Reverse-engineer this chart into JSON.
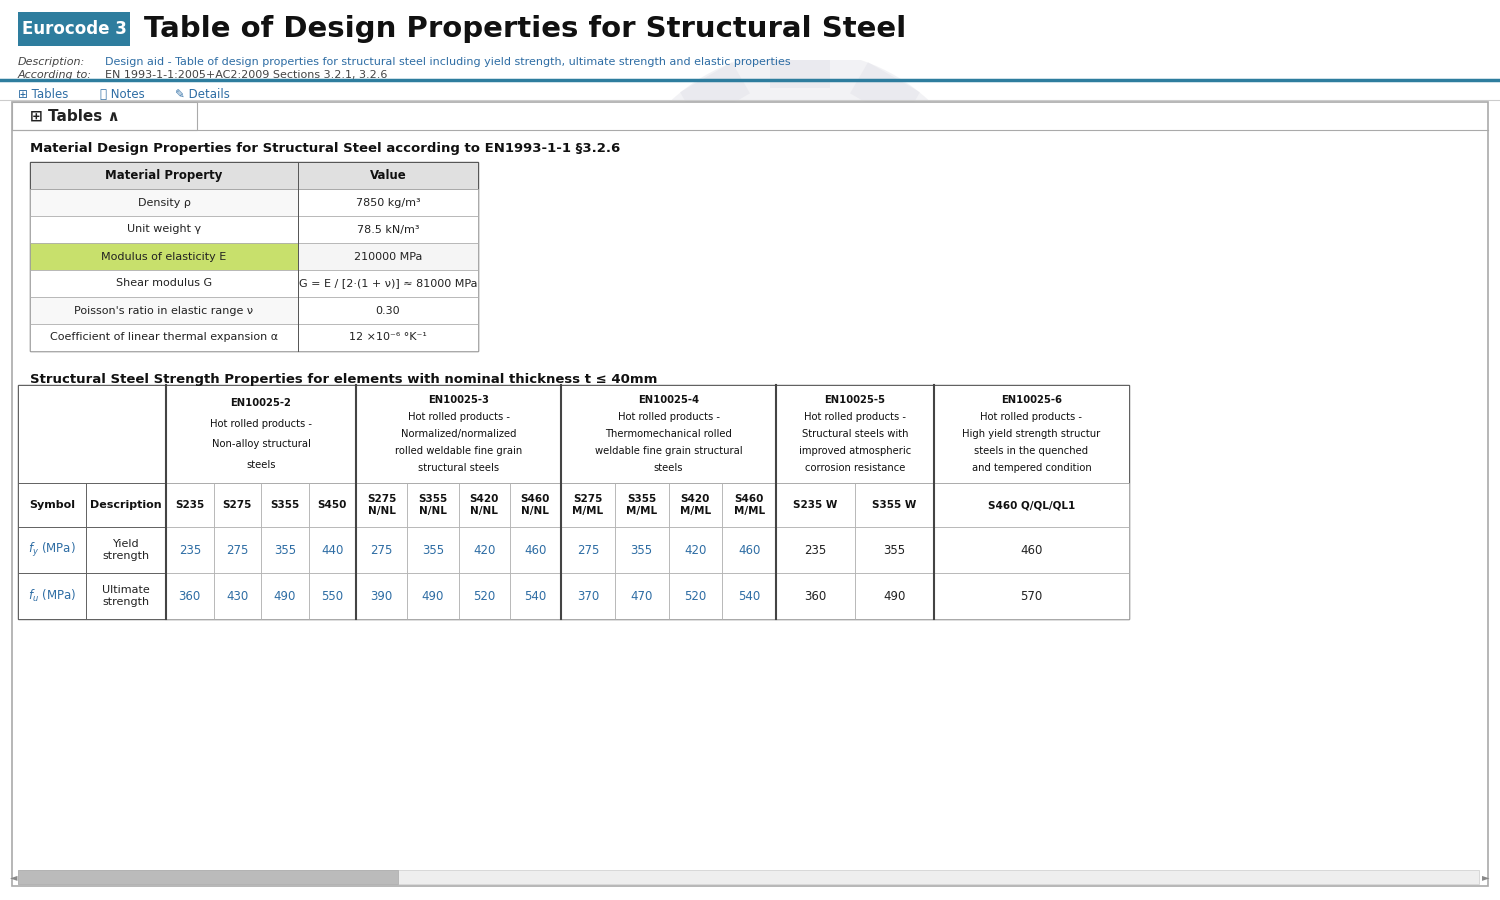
{
  "title_badge": "Eurocode 3",
  "title_badge_bg": "#2e7d9e",
  "title_text": "Table of Design Properties for Structural Steel",
  "description_label": "Description:",
  "description_text": "Design aid - Table of design properties for structural steel including yield strength, ultimate strength and elastic properties",
  "according_label": "According to:",
  "according_text": "EN 1993-1-1:2005+AC2:2009 Sections 3.2.1, 3.2.6",
  "mat_table_title": "Material Design Properties for Structural Steel according to EN1993-1-1 §3.2.6",
  "mat_header": [
    "Material Property",
    "Value"
  ],
  "mat_rows": [
    [
      "Density ρ",
      "7850 kg/m³"
    ],
    [
      "Unit weight γ",
      "78.5 kN/m³"
    ],
    [
      "Modulus of elasticity E",
      "210000 MPa"
    ],
    [
      "Shear modulus G",
      "G = E / [2·(1 + ν)] ≈ 81000 MPa"
    ],
    [
      "Poisson's ratio in elastic range ν",
      "0.30"
    ],
    [
      "Coefficient of linear thermal expansion α",
      "12 ×10⁻⁶ °K⁻¹"
    ]
  ],
  "mat_highlight_row": 2,
  "mat_highlight_color": "#c8e06c",
  "str_table_title": "Structural Steel Strength Properties for elements with nominal thickness t ≤ 40mm",
  "str_col_groups": [
    {
      "label": "EN10025-2\nHot rolled products -\nNon-alloy structural\nsteels",
      "cols": [
        "S235",
        "S275",
        "S355",
        "S450"
      ]
    },
    {
      "label": "EN10025-3\nHot rolled products -\nNormalized/normalized\nrolled weldable fine grain\nstructural steels",
      "cols": [
        "S275\nN/NL",
        "S355\nN/NL",
        "S420\nN/NL",
        "S460\nN/NL"
      ]
    },
    {
      "label": "EN10025-4\nHot rolled products -\nThermomechanical rolled\nweldable fine grain structural\nsteels",
      "cols": [
        "S275\nM/ML",
        "S355\nM/ML",
        "S420\nM/ML",
        "S460\nM/ML"
      ]
    },
    {
      "label": "EN10025-5\nHot rolled products -\nStructural steels with\nimproved atmospheric\ncorrosion resistance",
      "cols": [
        "S235 W",
        "S355 W"
      ]
    },
    {
      "label": "EN10025-6\nHot rolled products -\nHigh yield strength structur\nsteels in the quenched\nand tempered condition",
      "cols": [
        "S460 Q/QL/QL1"
      ]
    }
  ],
  "fy_values": [
    235,
    275,
    355,
    440,
    275,
    355,
    420,
    460,
    275,
    355,
    420,
    460,
    235,
    355,
    460
  ],
  "fu_values": [
    360,
    430,
    490,
    550,
    390,
    490,
    520,
    540,
    370,
    470,
    520,
    540,
    360,
    490,
    570
  ],
  "bg_color": "#ffffff",
  "table_border_dark": "#555555",
  "table_border_light": "#aaaaaa",
  "header_bg": "#e0e0e0",
  "link_color": "#2e6da4",
  "text_color": "#333333",
  "watermark_color": "#c8c8d4",
  "badge_color": "#2e7d9e"
}
